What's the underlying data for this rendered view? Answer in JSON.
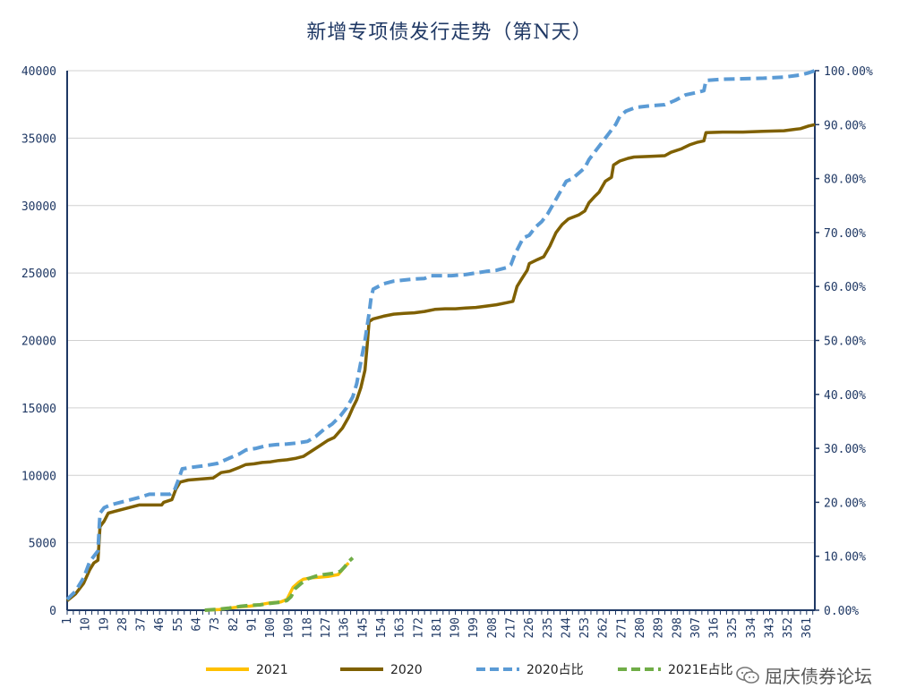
{
  "chart_data": {
    "type": "line",
    "title": "新增专项债发行走势（第N天）",
    "x_ticks": [
      "1",
      "10",
      "19",
      "28",
      "37",
      "46",
      "55",
      "64",
      "73",
      "82",
      "91",
      "100",
      "109",
      "118",
      "127",
      "136",
      "145",
      "154",
      "163",
      "172",
      "181",
      "190",
      "199",
      "208",
      "217",
      "226",
      "235",
      "244",
      "253",
      "262",
      "271",
      "280",
      "289",
      "298",
      "307",
      "316",
      "325",
      "334",
      "343",
      "352",
      "361"
    ],
    "xlim": [
      1,
      365
    ],
    "y_left": {
      "lim": [
        0,
        40000
      ],
      "ticks": [
        "0",
        "5000",
        "10000",
        "15000",
        "20000",
        "25000",
        "30000",
        "35000",
        "40000"
      ]
    },
    "y_right": {
      "lim": [
        0,
        1
      ],
      "ticks": [
        "0.00%",
        "10.00%",
        "20.00%",
        "30.00%",
        "40.00%",
        "50.00%",
        "60.00%",
        "70.00%",
        "80.00%",
        "90.00%",
        "100.00%"
      ]
    },
    "grid": true,
    "legend_position": "bottom",
    "series": [
      {
        "name": "2021",
        "axis": "left",
        "color": "#ffc000",
        "style": "solid",
        "points": [
          [
            68,
            0
          ],
          [
            75,
            50
          ],
          [
            80,
            150
          ],
          [
            85,
            250
          ],
          [
            90,
            300
          ],
          [
            95,
            420
          ],
          [
            100,
            550
          ],
          [
            105,
            620
          ],
          [
            108,
            800
          ],
          [
            111,
            1700
          ],
          [
            114,
            2100
          ],
          [
            116,
            2300
          ],
          [
            120,
            2400
          ],
          [
            124,
            2450
          ],
          [
            128,
            2500
          ],
          [
            133,
            2650
          ],
          [
            136,
            3200
          ],
          [
            138,
            3500
          ]
        ]
      },
      {
        "name": "2020",
        "axis": "left",
        "color": "#7f6000",
        "style": "solid",
        "points": [
          [
            1,
            700
          ],
          [
            5,
            1200
          ],
          [
            9,
            2000
          ],
          [
            12,
            3000
          ],
          [
            14,
            3500
          ],
          [
            16,
            3700
          ],
          [
            17,
            6200
          ],
          [
            19,
            6600
          ],
          [
            21,
            7200
          ],
          [
            26,
            7400
          ],
          [
            31,
            7600
          ],
          [
            36,
            7800
          ],
          [
            41,
            7800
          ],
          [
            47,
            7800
          ],
          [
            48,
            8000
          ],
          [
            52,
            8200
          ],
          [
            54,
            9000
          ],
          [
            56,
            9500
          ],
          [
            60,
            9650
          ],
          [
            64,
            9700
          ],
          [
            68,
            9750
          ],
          [
            72,
            9800
          ],
          [
            76,
            10200
          ],
          [
            80,
            10300
          ],
          [
            85,
            10600
          ],
          [
            88,
            10800
          ],
          [
            92,
            10850
          ],
          [
            96,
            10950
          ],
          [
            100,
            11000
          ],
          [
            104,
            11100
          ],
          [
            108,
            11150
          ],
          [
            112,
            11250
          ],
          [
            116,
            11400
          ],
          [
            120,
            11800
          ],
          [
            124,
            12200
          ],
          [
            128,
            12600
          ],
          [
            131,
            12800
          ],
          [
            135,
            13500
          ],
          [
            138,
            14300
          ],
          [
            140,
            15000
          ],
          [
            142,
            15600
          ],
          [
            144,
            16500
          ],
          [
            146,
            17800
          ],
          [
            147,
            19500
          ],
          [
            148,
            21400
          ],
          [
            150,
            21600
          ],
          [
            155,
            21800
          ],
          [
            160,
            21950
          ],
          [
            165,
            22000
          ],
          [
            170,
            22050
          ],
          [
            175,
            22150
          ],
          [
            180,
            22300
          ],
          [
            185,
            22350
          ],
          [
            190,
            22350
          ],
          [
            195,
            22400
          ],
          [
            200,
            22450
          ],
          [
            205,
            22550
          ],
          [
            210,
            22650
          ],
          [
            215,
            22800
          ],
          [
            218,
            22900
          ],
          [
            220,
            24000
          ],
          [
            222,
            24500
          ],
          [
            225,
            25200
          ],
          [
            226,
            25700
          ],
          [
            230,
            26000
          ],
          [
            233,
            26200
          ],
          [
            236,
            27000
          ],
          [
            239,
            28000
          ],
          [
            242,
            28600
          ],
          [
            245,
            29000
          ],
          [
            250,
            29300
          ],
          [
            253,
            29600
          ],
          [
            255,
            30200
          ],
          [
            258,
            30700
          ],
          [
            260,
            31000
          ],
          [
            263,
            31800
          ],
          [
            266,
            32100
          ],
          [
            267,
            33000
          ],
          [
            270,
            33300
          ],
          [
            274,
            33500
          ],
          [
            277,
            33600
          ],
          [
            285,
            33650
          ],
          [
            292,
            33700
          ],
          [
            295,
            33950
          ],
          [
            300,
            34200
          ],
          [
            304,
            34500
          ],
          [
            308,
            34700
          ],
          [
            311,
            34800
          ],
          [
            312,
            35400
          ],
          [
            320,
            35450
          ],
          [
            330,
            35450
          ],
          [
            340,
            35500
          ],
          [
            350,
            35550
          ],
          [
            358,
            35700
          ],
          [
            362,
            35900
          ],
          [
            365,
            36000
          ]
        ]
      },
      {
        "name": "2020占比",
        "axis": "right",
        "color": "#5b9bd5",
        "style": "dashed",
        "points": [
          [
            1,
            0.02
          ],
          [
            5,
            0.035
          ],
          [
            9,
            0.06
          ],
          [
            12,
            0.09
          ],
          [
            14,
            0.1
          ],
          [
            16,
            0.11
          ],
          [
            17,
            0.18
          ],
          [
            19,
            0.19
          ],
          [
            22,
            0.195
          ],
          [
            27,
            0.2
          ],
          [
            32,
            0.205
          ],
          [
            37,
            0.21
          ],
          [
            41,
            0.215
          ],
          [
            47,
            0.215
          ],
          [
            51,
            0.215
          ],
          [
            53,
            0.22
          ],
          [
            55,
            0.24
          ],
          [
            57,
            0.262
          ],
          [
            62,
            0.265
          ],
          [
            68,
            0.268
          ],
          [
            74,
            0.272
          ],
          [
            80,
            0.282
          ],
          [
            85,
            0.29
          ],
          [
            88,
            0.297
          ],
          [
            93,
            0.3
          ],
          [
            98,
            0.305
          ],
          [
            103,
            0.307
          ],
          [
            108,
            0.308
          ],
          [
            113,
            0.31
          ],
          [
            118,
            0.313
          ],
          [
            122,
            0.322
          ],
          [
            126,
            0.335
          ],
          [
            130,
            0.345
          ],
          [
            134,
            0.36
          ],
          [
            137,
            0.375
          ],
          [
            140,
            0.395
          ],
          [
            142,
            0.42
          ],
          [
            144,
            0.46
          ],
          [
            146,
            0.5
          ],
          [
            148,
            0.55
          ],
          [
            149,
            0.58
          ],
          [
            150,
            0.595
          ],
          [
            155,
            0.605
          ],
          [
            160,
            0.61
          ],
          [
            165,
            0.612
          ],
          [
            170,
            0.614
          ],
          [
            175,
            0.615
          ],
          [
            178,
            0.62
          ],
          [
            182,
            0.62
          ],
          [
            188,
            0.62
          ],
          [
            195,
            0.622
          ],
          [
            200,
            0.625
          ],
          [
            205,
            0.628
          ],
          [
            210,
            0.63
          ],
          [
            215,
            0.635
          ],
          [
            217,
            0.64
          ],
          [
            219,
            0.66
          ],
          [
            221,
            0.675
          ],
          [
            223,
            0.69
          ],
          [
            226,
            0.695
          ],
          [
            229,
            0.71
          ],
          [
            232,
            0.72
          ],
          [
            235,
            0.735
          ],
          [
            238,
            0.755
          ],
          [
            241,
            0.775
          ],
          [
            244,
            0.795
          ],
          [
            247,
            0.8
          ],
          [
            250,
            0.81
          ],
          [
            253,
            0.82
          ],
          [
            255,
            0.835
          ],
          [
            258,
            0.85
          ],
          [
            262,
            0.87
          ],
          [
            265,
            0.885
          ],
          [
            268,
            0.9
          ],
          [
            270,
            0.915
          ],
          [
            273,
            0.925
          ],
          [
            278,
            0.932
          ],
          [
            285,
            0.935
          ],
          [
            292,
            0.937
          ],
          [
            297,
            0.945
          ],
          [
            302,
            0.955
          ],
          [
            308,
            0.96
          ],
          [
            311,
            0.963
          ],
          [
            312,
            0.982
          ],
          [
            320,
            0.984
          ],
          [
            330,
            0.985
          ],
          [
            340,
            0.986
          ],
          [
            350,
            0.988
          ],
          [
            358,
            0.992
          ],
          [
            362,
            0.996
          ],
          [
            365,
            1.0
          ]
        ]
      },
      {
        "name": "2021E占比",
        "axis": "right",
        "color": "#70ad47",
        "style": "dashed",
        "points": [
          [
            68,
            0.0
          ],
          [
            75,
            0.002
          ],
          [
            80,
            0.004
          ],
          [
            85,
            0.007
          ],
          [
            90,
            0.009
          ],
          [
            95,
            0.01
          ],
          [
            100,
            0.013
          ],
          [
            105,
            0.015
          ],
          [
            108,
            0.018
          ],
          [
            110,
            0.025
          ],
          [
            112,
            0.04
          ],
          [
            115,
            0.05
          ],
          [
            118,
            0.058
          ],
          [
            122,
            0.063
          ],
          [
            126,
            0.066
          ],
          [
            130,
            0.068
          ],
          [
            134,
            0.072
          ],
          [
            136,
            0.08
          ],
          [
            138,
            0.09
          ],
          [
            140,
            0.097
          ]
        ]
      }
    ]
  },
  "watermark": {
    "icon": "wechat-icon",
    "text": "屈庆债券论坛"
  }
}
